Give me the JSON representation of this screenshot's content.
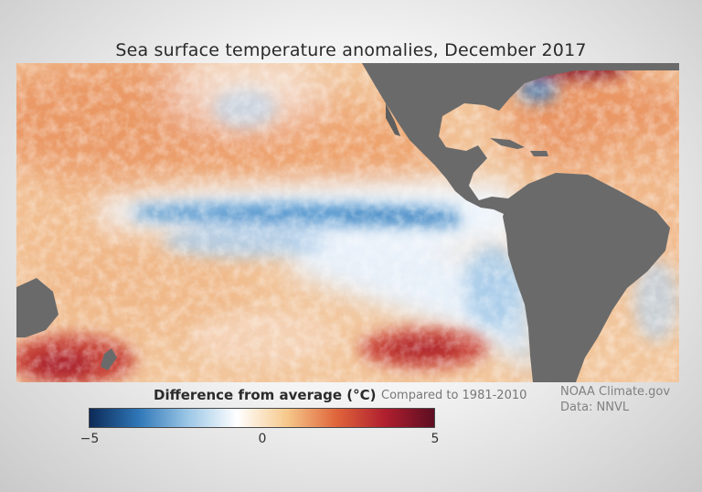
{
  "title": "Sea surface temperature anomalies, December 2017",
  "legend": {
    "title": "Difference from average (°C)",
    "baseline": "Compared to 1981-2010",
    "ticks": [
      "−5",
      "0",
      "5"
    ],
    "range": [
      -5,
      5
    ],
    "colors": [
      "#0c2a57",
      "#2f77b8",
      "#9cc7e6",
      "#ffffff",
      "#f6c98c",
      "#e0663b",
      "#b01f2e",
      "#5d0d22"
    ]
  },
  "credit": {
    "line1": "NOAA Climate.gov",
    "line2": "Data: NNVL"
  },
  "map": {
    "land_color": "#6a6a6a",
    "features": [
      "North America",
      "Central America",
      "South America",
      "Caribbean islands",
      "Australia"
    ]
  }
}
